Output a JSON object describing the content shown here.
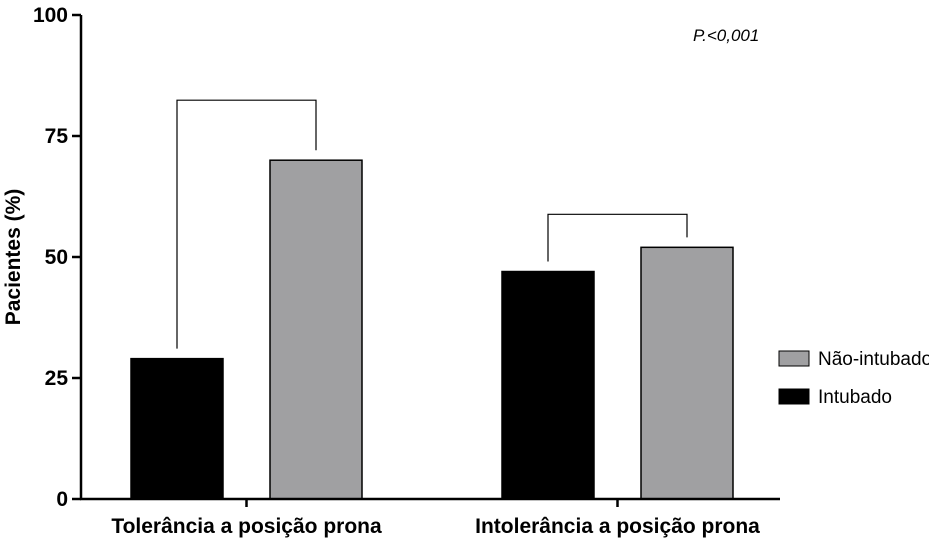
{
  "chart_data": {
    "type": "bar",
    "title": "",
    "xlabel": "",
    "ylabel": "Pacientes (%)",
    "ylim": [
      0,
      100
    ],
    "yticks": [
      0,
      25,
      50,
      75,
      100
    ],
    "categories": [
      "Tolerância a posição prona",
      "Intolerância a posição prona"
    ],
    "series": [
      {
        "name": "Intubado",
        "color": "#000000",
        "values": [
          29,
          47
        ]
      },
      {
        "name": "Não-intubado",
        "color": "#a0a0a2",
        "values": [
          70,
          52
        ]
      }
    ],
    "annotation": "P.<0,001",
    "legend_position": "right"
  }
}
